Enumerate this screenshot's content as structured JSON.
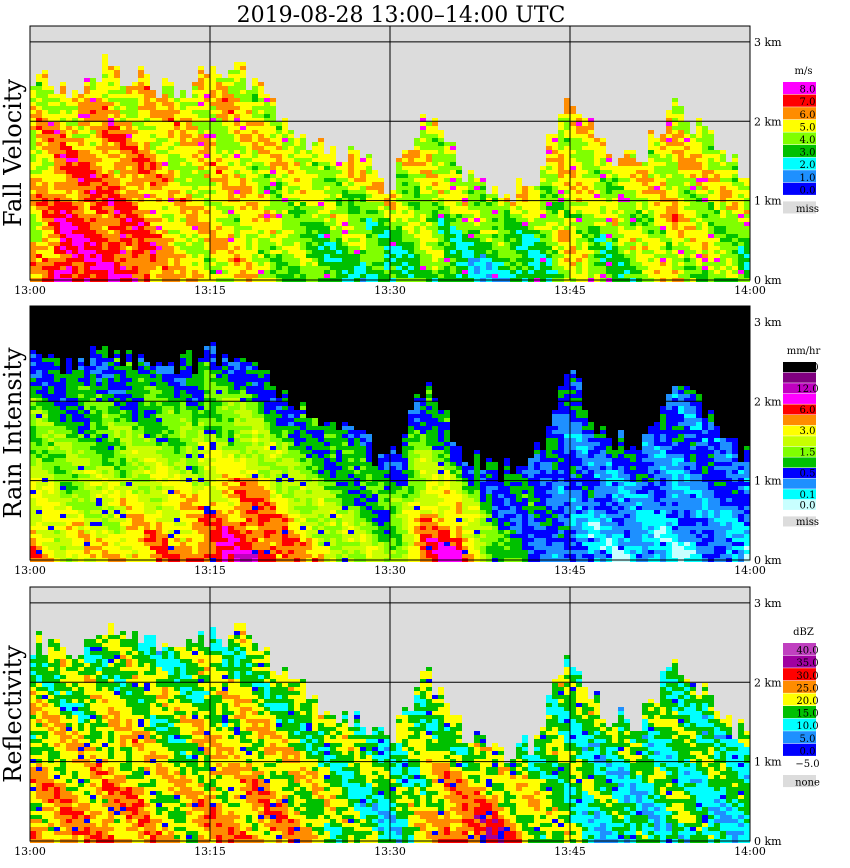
{
  "title": "2019-08-28   13:00–14:00 UTC",
  "chart_data": [
    {
      "type": "heatmap",
      "panel": "fall-velocity",
      "ylabel": "Fall Velocity",
      "x_ticks": [
        "13:00",
        "13:15",
        "13:30",
        "13:45",
        "14:00"
      ],
      "y_ticks": [
        "3 km",
        "2 km",
        "1 km",
        "0 km"
      ],
      "xlim": [
        "13:00",
        "14:00"
      ],
      "ylim_km": [
        0,
        3.2
      ],
      "legend_unit": "m/s",
      "legend": [
        {
          "label": "8.0",
          "color": "#ff00ff"
        },
        {
          "label": "7.0",
          "color": "#ff0000"
        },
        {
          "label": "6.0",
          "color": "#ff8c00"
        },
        {
          "label": "5.0",
          "color": "#ffff00"
        },
        {
          "label": "4.0",
          "color": "#80ff00"
        },
        {
          "label": "3.0",
          "color": "#00c000"
        },
        {
          "label": "2.0",
          "color": "#00ffff"
        },
        {
          "label": "1.0",
          "color": "#1e90ff"
        },
        {
          "label": "0.0",
          "color": "#0000ff"
        },
        {
          "label": "miss",
          "color": "#dcdcdc"
        }
      ],
      "field": {
        "top_km": [
          2.5,
          2.4,
          2.7,
          2.5,
          2.4,
          2.6,
          2.6,
          2.1,
          1.7,
          1.6,
          1.2,
          2.2,
          1.4,
          1.1,
          1.2,
          2.4,
          1.6,
          1.5,
          2.2,
          1.8,
          1.3
        ],
        "max_class": [
          3,
          0,
          1,
          1,
          3,
          3,
          3,
          4,
          5,
          5,
          6,
          4,
          6,
          6,
          6,
          3,
          5,
          4,
          3,
          4,
          5
        ],
        "base_class": 3,
        "fill_class": 9,
        "speckle_class": 0
      }
    },
    {
      "type": "heatmap",
      "panel": "rain-intensity",
      "ylabel": "Rain Intensity",
      "x_ticks": [
        "13:00",
        "13:15",
        "13:30",
        "13:45",
        "14:00"
      ],
      "y_ticks": [
        "3 km",
        "2 km",
        "1 km",
        "0 km"
      ],
      "xlim": [
        "13:00",
        "14:00"
      ],
      "ylim_km": [
        0,
        3.2
      ],
      "legend_unit": "mm/hr",
      "legend": [
        {
          "label": "48.0",
          "color": "#000000"
        },
        {
          "label": "",
          "color": "#800080"
        },
        {
          "label": "12.0",
          "color": "#c000c0"
        },
        {
          "label": "",
          "color": "#ff00ff"
        },
        {
          "label": "6.0",
          "color": "#ff0000"
        },
        {
          "label": "",
          "color": "#ff8c00"
        },
        {
          "label": "3.0",
          "color": "#ffff00"
        },
        {
          "label": "",
          "color": "#c8ff00"
        },
        {
          "label": "1.5",
          "color": "#80ff00"
        },
        {
          "label": "",
          "color": "#00c000"
        },
        {
          "label": "0.5",
          "color": "#0000ff"
        },
        {
          "label": "",
          "color": "#1e90ff"
        },
        {
          "label": "0.1",
          "color": "#00ffff"
        },
        {
          "label": "0.0",
          "color": "#c8ffff"
        },
        {
          "label": "miss",
          "color": "#dcdcdc"
        }
      ],
      "field": {
        "top_km": [
          2.5,
          2.4,
          2.7,
          2.5,
          2.4,
          2.6,
          2.6,
          2.1,
          1.7,
          1.6,
          1.2,
          2.2,
          1.4,
          1.1,
          1.2,
          2.4,
          1.6,
          1.5,
          2.2,
          1.8,
          1.3
        ],
        "max_class": [
          5,
          6,
          6,
          5,
          5,
          4,
          3,
          4,
          6,
          7,
          8,
          4,
          3,
          9,
          10,
          11,
          12,
          12,
          12,
          11,
          12
        ],
        "base_class": 10,
        "fill_class": 15,
        "speckle_class": 10
      }
    },
    {
      "type": "heatmap",
      "panel": "reflectivity",
      "ylabel": "Reflectivity",
      "x_ticks": [
        "13:00",
        "13:15",
        "13:30",
        "13:45",
        "14:00"
      ],
      "y_ticks": [
        "3 km",
        "2 km",
        "1 km",
        "0 km"
      ],
      "xlim": [
        "13:00",
        "14:00"
      ],
      "ylim_km": [
        0,
        3.2
      ],
      "legend_unit": "dBZ",
      "legend": [
        {
          "label": "40.0",
          "color": "#c040c0"
        },
        {
          "label": "35.0",
          "color": "#a000a0"
        },
        {
          "label": "30.0",
          "color": "#ff0000"
        },
        {
          "label": "25.0",
          "color": "#ff8c00"
        },
        {
          "label": "20.0",
          "color": "#ffff00"
        },
        {
          "label": "15.0",
          "color": "#00c000"
        },
        {
          "label": "10.0",
          "color": "#00ffff"
        },
        {
          "label": "5.0",
          "color": "#1e90ff"
        },
        {
          "label": "0.0",
          "color": "#0000ff"
        },
        {
          "label": "−5.0",
          "color": "#ffffff"
        },
        {
          "label": "none",
          "color": "#dcdcdc"
        }
      ],
      "field": {
        "top_km": [
          2.5,
          2.4,
          2.7,
          2.5,
          2.4,
          2.6,
          2.6,
          2.1,
          1.7,
          1.6,
          1.2,
          2.2,
          1.4,
          1.1,
          1.2,
          2.4,
          1.6,
          1.5,
          2.2,
          1.8,
          1.3
        ],
        "max_class": [
          3,
          3,
          3,
          3,
          4,
          3,
          3,
          3,
          4,
          5,
          6,
          4,
          2,
          2,
          4,
          5,
          6,
          6,
          5,
          6,
          6
        ],
        "base_class": 5,
        "fill_class": 10,
        "speckle_class": 8
      }
    }
  ]
}
